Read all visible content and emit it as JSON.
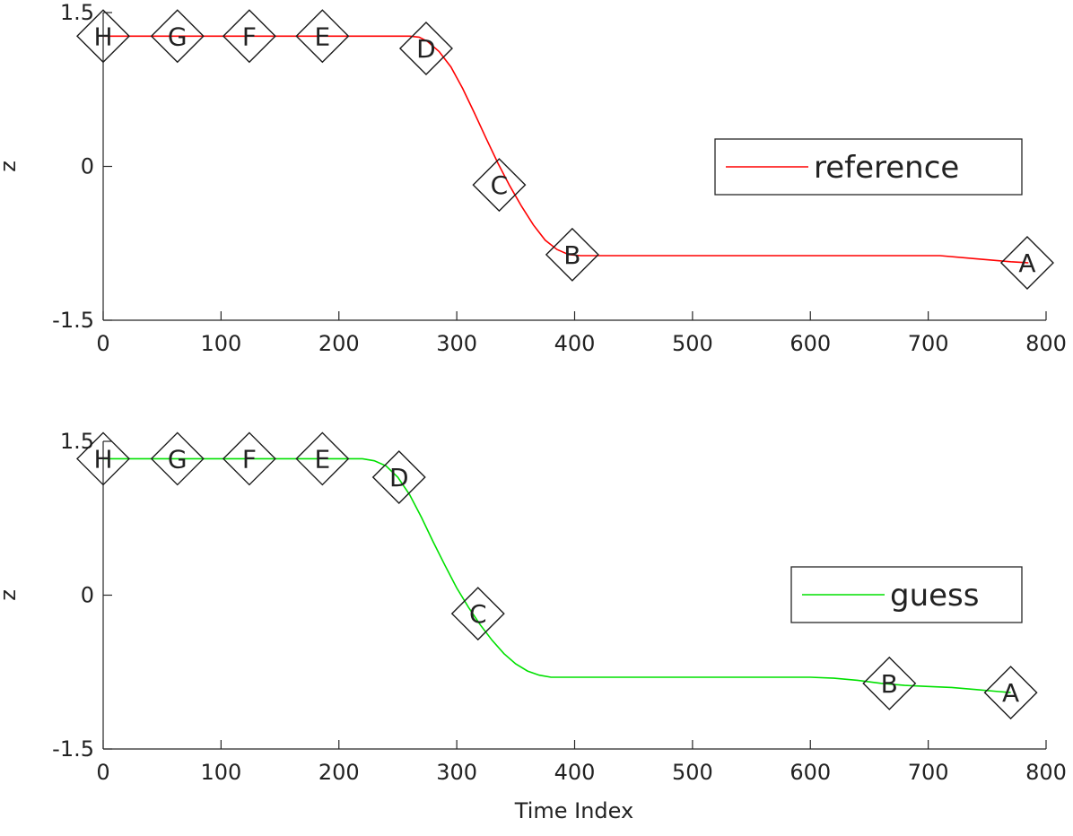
{
  "figure": {
    "xlabel": "Time Index"
  },
  "chart_data": [
    {
      "type": "line",
      "ylabel": "z",
      "xlim": [
        0,
        800
      ],
      "ylim": [
        -1.5,
        1.5
      ],
      "xticks": [
        0,
        100,
        200,
        300,
        400,
        500,
        600,
        700,
        800
      ],
      "yticks": [
        {
          "value": 1.5,
          "label": "1.5"
        },
        {
          "value": 0,
          "label": "0"
        },
        {
          "value": -1.5,
          "label": "-1.5"
        }
      ],
      "grid": false,
      "legend_position": "right",
      "series": [
        {
          "name": "reference",
          "color": "#ff0000",
          "x": [
            0,
            100,
            200,
            260,
            268,
            275,
            285,
            295,
            305,
            315,
            325,
            335,
            345,
            355,
            365,
            375,
            385,
            395,
            405,
            420,
            500,
            600,
            700,
            710,
            740,
            770,
            785
          ],
          "y": [
            1.27,
            1.27,
            1.27,
            1.27,
            1.26,
            1.22,
            1.12,
            0.97,
            0.76,
            0.52,
            0.27,
            0.03,
            -0.19,
            -0.39,
            -0.57,
            -0.72,
            -0.81,
            -0.86,
            -0.87,
            -0.87,
            -0.87,
            -0.87,
            -0.87,
            -0.87,
            -0.9,
            -0.93,
            -0.94
          ]
        }
      ],
      "markers": [
        {
          "label": "H",
          "x": 0,
          "y": 1.27
        },
        {
          "label": "G",
          "x": 63,
          "y": 1.27
        },
        {
          "label": "F",
          "x": 124,
          "y": 1.27
        },
        {
          "label": "E",
          "x": 186,
          "y": 1.27
        },
        {
          "label": "D",
          "x": 274,
          "y": 1.15
        },
        {
          "label": "C",
          "x": 336,
          "y": -0.18
        },
        {
          "label": "B",
          "x": 398,
          "y": -0.86
        },
        {
          "label": "A",
          "x": 784,
          "y": -0.94
        }
      ]
    },
    {
      "type": "line",
      "ylabel": "z",
      "xlim": [
        0,
        800
      ],
      "ylim": [
        -1.5,
        1.5
      ],
      "xticks": [
        0,
        100,
        200,
        300,
        400,
        500,
        600,
        700,
        800
      ],
      "yticks": [
        {
          "value": 1.5,
          "label": "1.5"
        },
        {
          "value": 0,
          "label": "0"
        },
        {
          "value": -1.5,
          "label": "-1.5"
        }
      ],
      "grid": false,
      "legend_position": "right",
      "series": [
        {
          "name": "guess",
          "color": "#00e000",
          "x": [
            0,
            100,
            200,
            220,
            230,
            240,
            250,
            260,
            270,
            280,
            290,
            300,
            310,
            320,
            330,
            340,
            350,
            360,
            370,
            380,
            390,
            400,
            500,
            600,
            620,
            640,
            660,
            680,
            700,
            720,
            740,
            760,
            770
          ],
          "y": [
            1.33,
            1.33,
            1.33,
            1.33,
            1.31,
            1.26,
            1.15,
            0.98,
            0.76,
            0.52,
            0.29,
            0.07,
            -0.12,
            -0.29,
            -0.44,
            -0.57,
            -0.67,
            -0.74,
            -0.78,
            -0.8,
            -0.8,
            -0.8,
            -0.8,
            -0.8,
            -0.81,
            -0.83,
            -0.86,
            -0.88,
            -0.89,
            -0.9,
            -0.92,
            -0.94,
            -0.95
          ]
        }
      ],
      "markers": [
        {
          "label": "H",
          "x": 0,
          "y": 1.33
        },
        {
          "label": "G",
          "x": 63,
          "y": 1.33
        },
        {
          "label": "F",
          "x": 124,
          "y": 1.33
        },
        {
          "label": "E",
          "x": 186,
          "y": 1.33
        },
        {
          "label": "D",
          "x": 251,
          "y": 1.15
        },
        {
          "label": "C",
          "x": 318,
          "y": -0.18
        },
        {
          "label": "B",
          "x": 667,
          "y": -0.86
        },
        {
          "label": "A",
          "x": 770,
          "y": -0.95
        }
      ]
    }
  ]
}
